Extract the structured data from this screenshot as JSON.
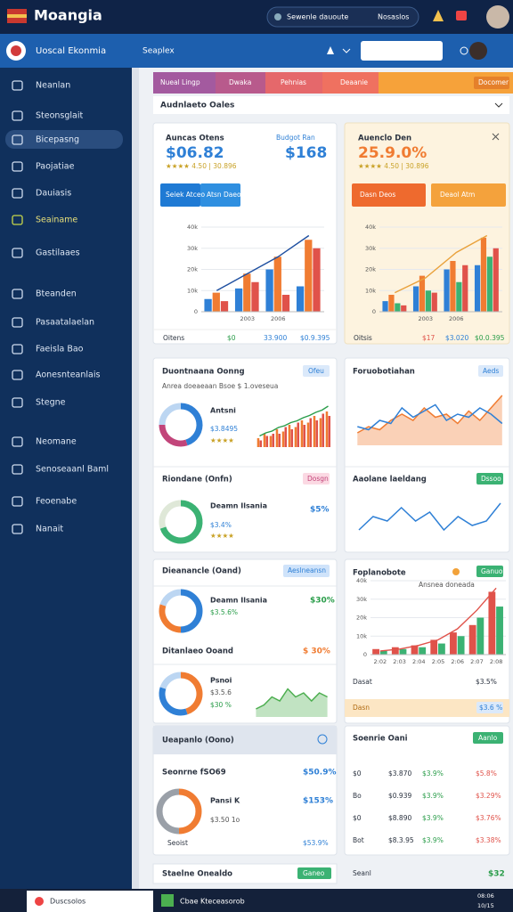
{
  "header": {
    "title": "Moangia",
    "search": "Sewenle dauoute",
    "search_right": "Nosaslos"
  },
  "subheader": {
    "brand": "Uoscal Ekonmia",
    "section": "Seaplex"
  },
  "sidebar": [
    "Neanlan",
    "Steonsglait",
    "Bicepasng",
    "Paojatiae",
    "Dauiasis",
    "Seainame",
    "Gastilaaes",
    "Bteanden",
    "Pasaatalaelan",
    "Faeisla Bao",
    "Aonesnteanlais",
    "Stegne",
    "Neomane",
    "Senoseaanl Baml",
    "Feoenabe",
    "Nanait"
  ],
  "tabs": [
    "Nueal Lingp",
    "Dwaka",
    "Pehnias",
    "Deaanie",
    "Docomer"
  ],
  "filter": "Audnlaeto Oales",
  "card1": {
    "title": "Auncas Otens",
    "value": "$06.82",
    "rating": "★★★★ 4.50 | 30.896",
    "title2": "Budgot Ran",
    "value2": "$168",
    "button": "Seiek Atceo",
    "button2": "Atsn Daeo",
    "footer": [
      "Oitens",
      "$0",
      "33.900",
      "$0.9.395"
    ]
  },
  "card2": {
    "title": "Auenclo Den",
    "value": "25.9.0%",
    "rating": "★★★★ 4.50 | 30.896",
    "button": "Dasn Deos",
    "button2": "Deaol Atm",
    "footer": [
      "Oitsis",
      "$17",
      "$3.020",
      "$0.0.395"
    ]
  },
  "card3": {
    "title": "Duontnaana Oonng",
    "tag": "Ofeu",
    "subtitle": "Anrea doeaeaan  Bsoe  $ 1.oveseua",
    "name": "Antsni",
    "price": "$3.8495",
    "rating": "★★★★",
    "title2": "Riondane (Onfn)",
    "tag2": "Dosgn",
    "name2": "Deamn Ilsania",
    "price2": "$3.4%",
    "rating2": "★★★★",
    "pct2": "$5%"
  },
  "card4": {
    "title": "Foruobotiahan",
    "tag": "Aeds",
    "title2": "Aaolane laeldang",
    "tag2": "Dssoo"
  },
  "card5": {
    "title": "Dieanancle (Oand)",
    "tag": "Aeslneansn",
    "name": "Deamn Ilsania",
    "price": "$3.5.6%",
    "pct": "$30%",
    "title2": "Ditanlaeo Ooand",
    "pct2": "$ 30%",
    "name2": "Psnoi",
    "price2": "$3.5.6",
    "pct3": "$30 %"
  },
  "card6": {
    "title": "Foplanobote",
    "tag": "Ganuo",
    "subtitle": "Ansnea doneada",
    "footer": [
      "Dasat",
      "$3.5%"
    ],
    "banner": "Dasn",
    "banner_right": "$3.6 %"
  },
  "card7": {
    "title": "Ueapanlo (Oono)",
    "name": "Seonrne fSO69",
    "pct": "$50.9%",
    "item": "Pansi K",
    "pct2": "$153%",
    "price": "$3.50 1o",
    "footer": "Seoist",
    "footer_pct": "$53.9%"
  },
  "card8": {
    "title": "Soenrie Oani",
    "tag": "Aanlo",
    "rows": [
      [
        "$0",
        "$3.870",
        "$3.9%",
        "$5.8%"
      ],
      [
        "Bo",
        "$0.939",
        "$3.9%",
        "$3.29%"
      ],
      [
        "$0",
        "$8.890",
        "$3.9%",
        "$3.76%"
      ],
      [
        "Bot",
        "$8.3.95",
        "$3.9%",
        "$3.38%"
      ]
    ]
  },
  "bottom": {
    "title": "Staelne Onealdo",
    "tag": "Ganeo",
    "right_title": "Seanl",
    "right_value": "$32"
  },
  "taskbar": {
    "search": "Duscsolos",
    "app": "Cbae Kteceasorob",
    "time": "08:06",
    "date": "10/15"
  },
  "chart_data": [
    {
      "type": "bar",
      "categories": [
        null,
        "2003",
        "2006",
        null
      ],
      "ylim": [
        0,
        40
      ],
      "yticks": [
        0,
        {
          "value": 10,
          "label": "10k"
        },
        {
          "value": 20,
          "label": "20k"
        },
        {
          "value": 30,
          "label": "30k"
        },
        {
          "value": 40,
          "label": "40k"
        }
      ],
      "grid": true,
      "series": [
        {
          "color": "#2f80d6",
          "values": [
            6,
            11,
            20,
            12
          ]
        },
        {
          "color": "#f07c32",
          "values": [
            9,
            18,
            26,
            34
          ]
        },
        {
          "color": "#e0524a",
          "values": [
            5,
            14,
            8,
            30
          ]
        },
        {
          "type": "line",
          "color": "#1e4fa0",
          "values": [
            10,
            18,
            26,
            36
          ]
        }
      ]
    },
    {
      "type": "bar",
      "categories": [
        null,
        "2003",
        "2006",
        null
      ],
      "ylim": [
        0,
        40
      ],
      "yticks": [
        0,
        {
          "value": 10,
          "label": "10k"
        },
        {
          "value": 20,
          "label": "20k"
        },
        {
          "value": 30,
          "label": "30k"
        },
        {
          "value": 40,
          "label": "40k"
        }
      ],
      "grid": true,
      "series": [
        {
          "color": "#2f80d6",
          "values": [
            5,
            12,
            20,
            22
          ]
        },
        {
          "color": "#f07c32",
          "values": [
            8,
            17,
            24,
            35
          ]
        },
        {
          "color": "#3bb273",
          "values": [
            4,
            10,
            14,
            26
          ]
        },
        {
          "color": "#e0524a",
          "values": [
            3,
            9,
            22,
            30
          ]
        },
        {
          "type": "line",
          "color": "#e9a13b",
          "values": [
            9,
            16,
            28,
            36
          ]
        }
      ]
    },
    {
      "type": "bar",
      "ylim": [
        0,
        10
      ],
      "series": [
        {
          "color": "#f07c32",
          "values": [
            2,
            3,
            2.5,
            4,
            3.5,
            5,
            4.5,
            6,
            5.5,
            7,
            6.5,
            8
          ]
        },
        {
          "color": "#e0524a",
          "values": [
            1.5,
            2.5,
            3,
            3,
            4.5,
            4,
            5.5,
            5,
            6.5,
            6,
            7.5,
            7
          ]
        },
        {
          "type": "line",
          "color": "#2a9d4a",
          "values": [
            2.5,
            3.2,
            3.6,
            4.4,
            4.8,
            5.5,
            5.9,
            6.6,
            7.1,
            7.8,
            8.3,
            9.2
          ]
        }
      ]
    },
    {
      "type": "area",
      "ylim": [
        0,
        10
      ],
      "series": [
        {
          "color": "#f07c32",
          "values": [
            2,
            3,
            2.5,
            4,
            5,
            4,
            6,
            4.5,
            5,
            3.5,
            5.5,
            4,
            6,
            8
          ]
        },
        {
          "type": "line",
          "color": "#2f80d6",
          "values": [
            3,
            2.5,
            4,
            3.5,
            6,
            4.5,
            5.5,
            6.5,
            4,
            5,
            4.5,
            6,
            5,
            3.5
          ]
        }
      ]
    },
    {
      "type": "line",
      "ylim": [
        0,
        10
      ],
      "series": [
        {
          "color": "#2f80d6",
          "values": [
            2,
            5,
            4,
            7,
            4,
            6,
            2,
            5,
            3,
            4,
            8
          ]
        }
      ]
    },
    {
      "type": "bar",
      "categories": [
        "2:02",
        "2:03",
        "2:04",
        "2:05",
        "2:06",
        "2:07",
        "2:08"
      ],
      "ylim": [
        0,
        40
      ],
      "yticks": [
        0,
        {
          "value": 10,
          "label": "10k"
        },
        {
          "value": 20,
          "label": "20k"
        },
        {
          "value": 30,
          "label": "30k"
        },
        {
          "value": 40,
          "label": "40k"
        }
      ],
      "grid": true,
      "series": [
        {
          "color": "#e0524a",
          "values": [
            3,
            4,
            5,
            8,
            12,
            16,
            34
          ]
        },
        {
          "color": "#3bb273",
          "values": [
            2,
            3,
            4,
            6,
            10,
            20,
            26
          ]
        },
        {
          "type": "line",
          "color": "#e0524a",
          "values": [
            2,
            3,
            5,
            8,
            14,
            24,
            36
          ]
        }
      ]
    },
    {
      "type": "area",
      "ylim": [
        0,
        10
      ],
      "series": [
        {
          "color": "#4cae4f",
          "values": [
            2,
            3,
            5,
            4,
            7,
            5,
            6,
            4,
            6,
            5
          ]
        }
      ]
    },
    {
      "type": "pie",
      "values": [
        45,
        30,
        25
      ],
      "colors": [
        "#2f80d6",
        "#c2457a",
        "#bcd6f2"
      ]
    },
    {
      "type": "pie",
      "values": [
        70,
        30
      ],
      "colors": [
        "#3bb273",
        "#dfe8d8"
      ]
    },
    {
      "type": "pie",
      "values": [
        50,
        30,
        20
      ],
      "colors": [
        "#2f80d6",
        "#f07c32",
        "#bcd6f2"
      ]
    },
    {
      "type": "pie",
      "values": [
        45,
        35,
        20
      ],
      "colors": [
        "#f07c32",
        "#2f80d6",
        "#bcd6f2"
      ]
    },
    {
      "type": "pie",
      "values": [
        50,
        50
      ],
      "colors": [
        "#f07c32",
        "#9aa0a8"
      ]
    }
  ]
}
